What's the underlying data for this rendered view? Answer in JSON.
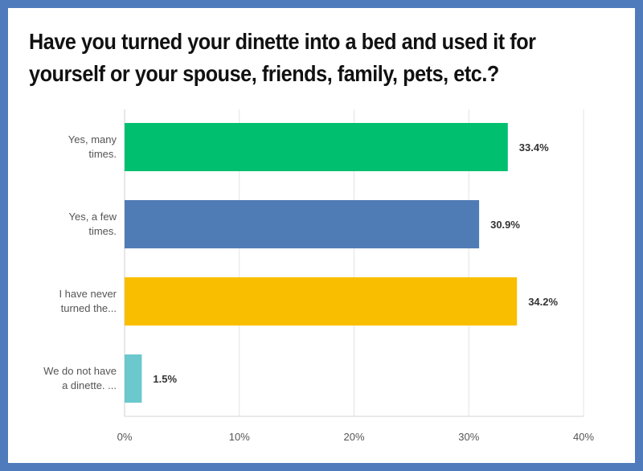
{
  "page": {
    "title": "Have you turned your dinette into a bed and used it for yourself or your spouse, friends, family, pets, etc.?"
  },
  "chart_data": {
    "type": "bar",
    "orientation": "horizontal",
    "title": "Have you turned your dinette into a bed and used it for yourself or your spouse, friends, family, pets, etc.?",
    "categories": [
      [
        "Yes, many",
        "times."
      ],
      [
        "Yes, a few",
        "times."
      ],
      [
        "I have never",
        "turned the..."
      ],
      [
        "We do not have",
        "a dinette. ..."
      ]
    ],
    "values": [
      33.4,
      30.9,
      34.2,
      1.5
    ],
    "value_labels": [
      "33.4%",
      "30.9%",
      "34.2%",
      "1.5%"
    ],
    "colors": [
      "#00bf6f",
      "#507cb6",
      "#f9be00",
      "#6bc8cd"
    ],
    "xlim": [
      0,
      40
    ],
    "ticks": [
      0,
      10,
      20,
      30,
      40
    ],
    "tick_labels": [
      "0%",
      "10%",
      "20%",
      "30%",
      "40%"
    ],
    "grid": true,
    "legend": "none"
  }
}
